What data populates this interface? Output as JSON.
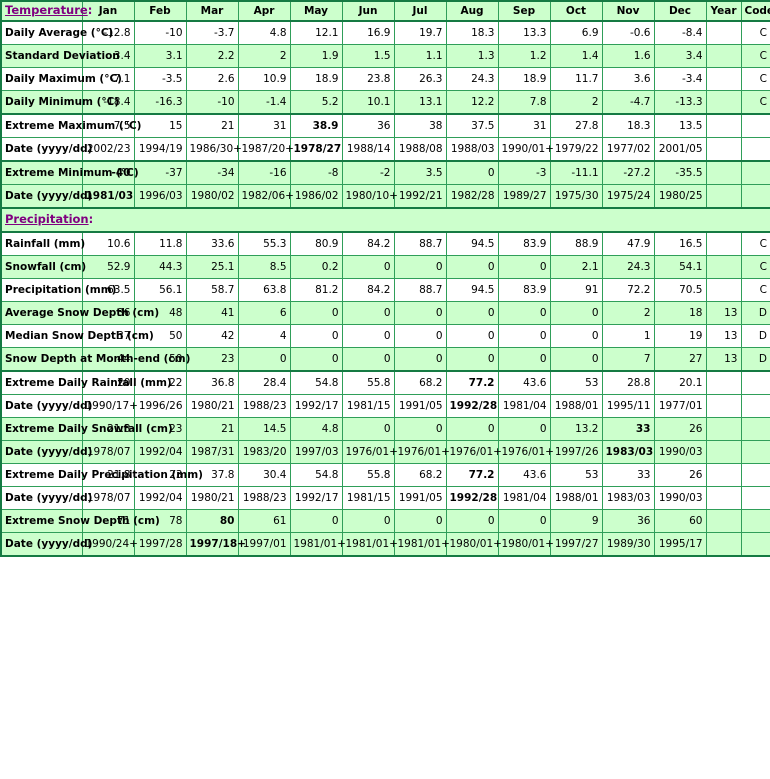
{
  "table": {
    "columns": [
      "Jan",
      "Feb",
      "Mar",
      "Apr",
      "May",
      "Jun",
      "Jul",
      "Aug",
      "Sep",
      "Oct",
      "Nov",
      "Dec",
      "Year",
      "Code"
    ],
    "sections": {
      "temperature": {
        "label": "Temperature",
        "suffix": ":"
      },
      "precipitation": {
        "label": "Precipitation",
        "suffix": ":"
      }
    },
    "rows": [
      {
        "type": "data",
        "label": "Daily Average (°C)",
        "values": [
          "-12.8",
          "-10",
          "-3.7",
          "4.8",
          "12.1",
          "16.9",
          "19.7",
          "18.3",
          "13.3",
          "6.9",
          "-0.6",
          "-8.4"
        ],
        "year": "",
        "code": "C",
        "bg": "white",
        "bold": null,
        "sep": false
      },
      {
        "type": "data",
        "label": "Standard Deviation",
        "values": [
          "3.4",
          "3.1",
          "2.2",
          "2",
          "1.9",
          "1.5",
          "1.1",
          "1.3",
          "1.2",
          "1.4",
          "1.6",
          "3.4"
        ],
        "year": "",
        "code": "C",
        "bg": "green",
        "bold": null,
        "sep": false
      },
      {
        "type": "data",
        "label": "Daily Maximum (°C)",
        "values": [
          "-7.1",
          "-3.5",
          "2.6",
          "10.9",
          "18.9",
          "23.8",
          "26.3",
          "24.3",
          "18.9",
          "11.7",
          "3.6",
          "-3.4"
        ],
        "year": "",
        "code": "C",
        "bg": "white",
        "bold": null,
        "sep": false
      },
      {
        "type": "data",
        "label": "Daily Minimum (°C)",
        "values": [
          "-18.4",
          "-16.3",
          "-10",
          "-1.4",
          "5.2",
          "10.1",
          "13.1",
          "12.2",
          "7.8",
          "2",
          "-4.7",
          "-13.3"
        ],
        "year": "",
        "code": "C",
        "bg": "green",
        "bold": null,
        "sep": true
      },
      {
        "type": "data",
        "label": "Extreme Maximum (°C)",
        "values": [
          "7.5",
          "15",
          "21",
          "31",
          "38.9",
          "36",
          "38",
          "37.5",
          "31",
          "27.8",
          "18.3",
          "13.5"
        ],
        "year": "",
        "code": "",
        "bg": "white",
        "bold": 4,
        "sep": false
      },
      {
        "type": "data",
        "label": "Date (yyyy/dd)",
        "values": [
          "2002/23",
          "1994/19",
          "1986/30+",
          "1987/20+",
          "1978/27",
          "1988/14",
          "1988/08",
          "1988/03",
          "1990/01+",
          "1979/22",
          "1977/02",
          "2001/05"
        ],
        "year": "",
        "code": "",
        "bg": "white",
        "bold": 4,
        "sep": true
      },
      {
        "type": "data",
        "label": "Extreme Minimum (°C)",
        "values": [
          "-40",
          "-37",
          "-34",
          "-16",
          "-8",
          "-2",
          "3.5",
          "0",
          "-3",
          "-11.1",
          "-27.2",
          "-35.5"
        ],
        "year": "",
        "code": "",
        "bg": "green",
        "bold": 0,
        "sep": false
      },
      {
        "type": "data",
        "label": "Date (yyyy/dd)",
        "values": [
          "1981/03",
          "1996/03",
          "1980/02",
          "1982/06+",
          "1986/02",
          "1980/10+",
          "1992/21",
          "1982/28",
          "1989/27",
          "1975/30",
          "1975/24",
          "1980/25"
        ],
        "year": "",
        "code": "",
        "bg": "green",
        "bold": 0,
        "sep": true
      },
      {
        "type": "section",
        "section": "precipitation",
        "bg": "green",
        "sep": true
      },
      {
        "type": "data",
        "label": "Rainfall (mm)",
        "values": [
          "10.6",
          "11.8",
          "33.6",
          "55.3",
          "80.9",
          "84.2",
          "88.7",
          "94.5",
          "83.9",
          "88.9",
          "47.9",
          "16.5"
        ],
        "year": "",
        "code": "C",
        "bg": "white",
        "bold": null,
        "sep": false
      },
      {
        "type": "data",
        "label": "Snowfall (cm)",
        "values": [
          "52.9",
          "44.3",
          "25.1",
          "8.5",
          "0.2",
          "0",
          "0",
          "0",
          "0",
          "2.1",
          "24.3",
          "54.1"
        ],
        "year": "",
        "code": "C",
        "bg": "green",
        "bold": null,
        "sep": false
      },
      {
        "type": "data",
        "label": "Precipitation (mm)",
        "values": [
          "63.5",
          "56.1",
          "58.7",
          "63.8",
          "81.2",
          "84.2",
          "88.7",
          "94.5",
          "83.9",
          "91",
          "72.2",
          "70.5"
        ],
        "year": "",
        "code": "C",
        "bg": "white",
        "bold": null,
        "sep": false
      },
      {
        "type": "data",
        "label": "Average Snow Depth (cm)",
        "values": [
          "36",
          "48",
          "41",
          "6",
          "0",
          "0",
          "0",
          "0",
          "0",
          "0",
          "2",
          "18"
        ],
        "year": "13",
        "code": "D",
        "bg": "green",
        "bold": null,
        "sep": false
      },
      {
        "type": "data",
        "label": "Median Snow Depth (cm)",
        "values": [
          "37",
          "50",
          "42",
          "4",
          "0",
          "0",
          "0",
          "0",
          "0",
          "0",
          "1",
          "19"
        ],
        "year": "13",
        "code": "D",
        "bg": "white",
        "bold": null,
        "sep": false
      },
      {
        "type": "data",
        "label": "Snow Depth at Month-end (cm)",
        "values": [
          "44",
          "50",
          "23",
          "0",
          "0",
          "0",
          "0",
          "0",
          "0",
          "0",
          "7",
          "27"
        ],
        "year": "13",
        "code": "D",
        "bg": "green",
        "bold": null,
        "sep": true
      },
      {
        "type": "data",
        "label": "Extreme Daily Rainfall (mm)",
        "values": [
          "20",
          "22",
          "36.8",
          "28.4",
          "54.8",
          "55.8",
          "68.2",
          "77.2",
          "43.6",
          "53",
          "28.8",
          "20.1"
        ],
        "year": "",
        "code": "",
        "bg": "white",
        "bold": 7,
        "sep": false
      },
      {
        "type": "data",
        "label": "Date (yyyy/dd)",
        "values": [
          "1990/17+",
          "1996/26",
          "1980/21",
          "1988/23",
          "1992/17",
          "1981/15",
          "1991/05",
          "1992/28",
          "1981/04",
          "1988/01",
          "1995/11",
          "1977/01"
        ],
        "year": "",
        "code": "",
        "bg": "white",
        "bold": 7,
        "sep": false
      },
      {
        "type": "data",
        "label": "Extreme Daily Snowfall (cm)",
        "values": [
          "21.8",
          "23",
          "21",
          "14.5",
          "4.8",
          "0",
          "0",
          "0",
          "0",
          "13.2",
          "33",
          "26"
        ],
        "year": "",
        "code": "",
        "bg": "green",
        "bold": 10,
        "sep": false
      },
      {
        "type": "data",
        "label": "Date (yyyy/dd)",
        "values": [
          "1978/07",
          "1992/04",
          "1987/31",
          "1983/20",
          "1997/03",
          "1976/01+",
          "1976/01+",
          "1976/01+",
          "1976/01+",
          "1997/26",
          "1983/03",
          "1990/03"
        ],
        "year": "",
        "code": "",
        "bg": "green",
        "bold": 10,
        "sep": false
      },
      {
        "type": "data",
        "label": "Extreme Daily Precipitation (mm)",
        "values": [
          "21.8",
          "23",
          "37.8",
          "30.4",
          "54.8",
          "55.8",
          "68.2",
          "77.2",
          "43.6",
          "53",
          "33",
          "26"
        ],
        "year": "",
        "code": "",
        "bg": "white",
        "bold": 7,
        "sep": false
      },
      {
        "type": "data",
        "label": "Date (yyyy/dd)",
        "values": [
          "1978/07",
          "1992/04",
          "1980/21",
          "1988/23",
          "1992/17",
          "1981/15",
          "1991/05",
          "1992/28",
          "1981/04",
          "1988/01",
          "1983/03",
          "1990/03"
        ],
        "year": "",
        "code": "",
        "bg": "white",
        "bold": 7,
        "sep": false
      },
      {
        "type": "data",
        "label": "Extreme Snow Depth (cm)",
        "values": [
          "71",
          "78",
          "80",
          "61",
          "0",
          "0",
          "0",
          "0",
          "0",
          "9",
          "36",
          "60"
        ],
        "year": "",
        "code": "",
        "bg": "green",
        "bold": 2,
        "sep": false
      },
      {
        "type": "data",
        "label": "Date (yyyy/dd)",
        "values": [
          "1990/24+",
          "1997/28",
          "1997/18+",
          "1997/01",
          "1981/01+",
          "1981/01+",
          "1981/01+",
          "1980/01+",
          "1980/01+",
          "1997/27",
          "1989/30",
          "1995/17"
        ],
        "year": "",
        "code": "",
        "bg": "green",
        "bold": 2,
        "sep": false
      }
    ],
    "colors": {
      "row_green": "#ccffcc",
      "row_white": "#ffffff",
      "border_thin": "#2f9e59",
      "border_thick": "#157a43",
      "label_blue": "#0000cc",
      "link_purple": "#800080"
    }
  }
}
